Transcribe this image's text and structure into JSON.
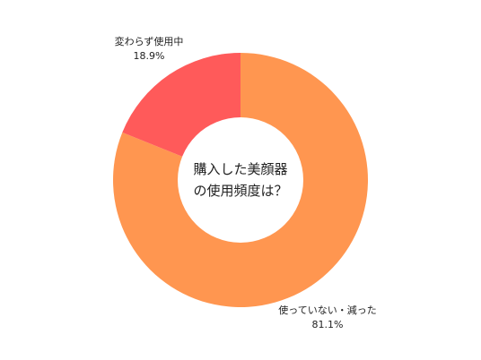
{
  "chart_data": {
    "type": "pie",
    "donut": true,
    "center_title": [
      "購入した美顔器",
      "の使用頻度は？"
    ],
    "slices": [
      {
        "label": "使っていない・減った",
        "value": 81.1,
        "value_text": "81.1%",
        "color": "#FF9650"
      },
      {
        "label": "変わらず使用中",
        "value": 18.9,
        "value_text": "18.9%",
        "color": "#FF5A5A"
      }
    ],
    "start": "top",
    "direction": "clockwise"
  }
}
